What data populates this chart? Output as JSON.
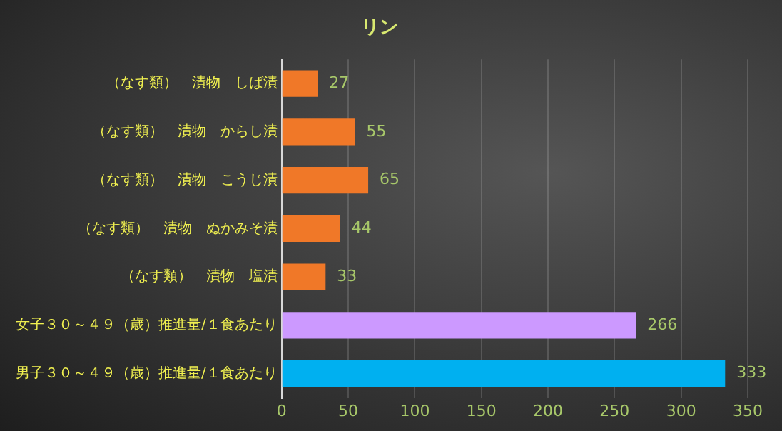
{
  "chart_data": {
    "type": "bar",
    "orientation": "horizontal",
    "title": "リン",
    "categories": [
      "（なす類）　漬物　しば漬",
      "（なす類）　漬物　からし漬",
      "（なす類）　漬物　こうじ漬",
      "（なす類）　漬物　ぬかみそ漬",
      "（なす類）　漬物　塩漬",
      "女子３０～４９（歳）推進量/１食あたり",
      "男子３０～４９（歳）推進量/１食あたり"
    ],
    "values": [
      27,
      55,
      65,
      44,
      33,
      266,
      333
    ],
    "colors": [
      "#f07828",
      "#f07828",
      "#f07828",
      "#f07828",
      "#f07828",
      "#cc99ff",
      "#00b0f0"
    ],
    "xlim": [
      0,
      350
    ],
    "xticks": [
      0,
      50,
      100,
      150,
      200,
      250,
      300,
      350
    ],
    "grid": "x",
    "data_labels": true,
    "legend": false
  }
}
